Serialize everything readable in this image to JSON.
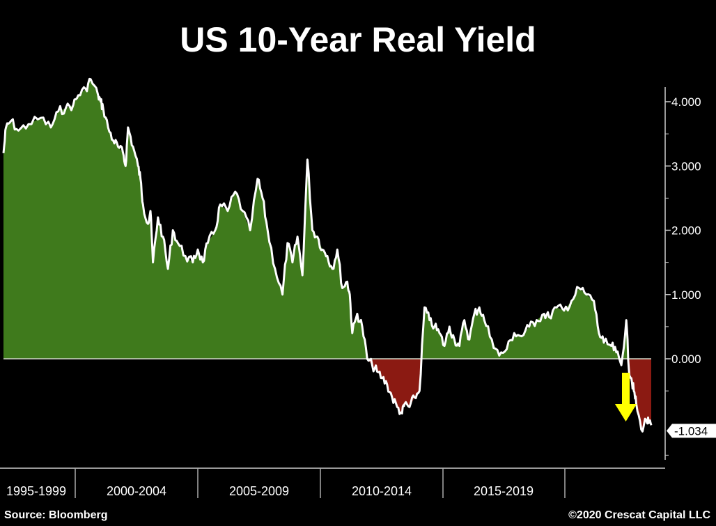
{
  "title": "US 10-Year Real Yield",
  "source": "Source: Bloomberg",
  "copyright": "©2020 Crescat Capital LLC",
  "colors": {
    "background": "#000000",
    "positive_fill": "#3f7a1c",
    "negative_fill": "#8b1a12",
    "line": "#ffffff",
    "arrow": "#ffff00"
  },
  "chart_data": {
    "type": "area",
    "title": "US 10-Year Real Yield",
    "xlabel": "",
    "ylabel": "",
    "ylim": [
      -1.5,
      4.3
    ],
    "xlim": [
      1995.0,
      2021.0
    ],
    "yticks": [
      4.0,
      3.0,
      2.0,
      1.0,
      0.0
    ],
    "ytick_labels": [
      "4.000",
      "3.000",
      "2.000",
      "1.000",
      "0.000"
    ],
    "xtick_labels": [
      "1995-1999",
      "2000-2004",
      "2005-2009",
      "2010-2014",
      "2015-2019"
    ],
    "last_value_label": "-1.034",
    "grid": false,
    "x": [
      1995.0,
      1995.1,
      1995.3,
      1995.6,
      1996.0,
      1996.5,
      1996.9,
      1997.2,
      1997.5,
      1997.8,
      1998.0,
      1998.3,
      1998.5,
      1998.8,
      1998.9,
      1999.0,
      1999.2,
      1999.4,
      1999.6,
      1999.8,
      1999.9,
      2000.0,
      2000.2,
      2000.4,
      2000.5,
      2000.6,
      2000.8,
      2000.9,
      2001.0,
      2001.2,
      2001.4,
      2001.6,
      2001.8,
      2002.0,
      2002.3,
      2002.6,
      2002.8,
      2003.0,
      2003.2,
      2003.5,
      2003.7,
      2004.0,
      2004.3,
      2004.6,
      2004.9,
      2005.2,
      2005.4,
      2005.6,
      2005.9,
      2006.2,
      2006.4,
      2006.6,
      2006.8,
      2007.0,
      2007.2,
      2007.4,
      2007.6,
      2007.8,
      2008.0,
      2008.2,
      2008.4,
      2008.6,
      2008.8,
      2008.9,
      2009.0,
      2009.2,
      2009.4,
      2009.6,
      2009.8,
      2010.0,
      2010.2,
      2010.4,
      2010.6,
      2010.8,
      2011.0,
      2011.1,
      2011.3,
      2011.5,
      2011.7,
      2011.9,
      2012.1,
      2012.3,
      2012.5,
      2012.7,
      2012.9,
      2013.1,
      2013.3,
      2013.5,
      2013.7,
      2013.9,
      2014.1,
      2014.3,
      2014.6,
      2014.9,
      2015.2,
      2015.5,
      2015.8,
      2016.1,
      2016.4,
      2016.7,
      2016.9,
      2017.2,
      2017.5,
      2017.8,
      2018.1,
      2018.4,
      2018.7,
      2018.9,
      2019.1,
      2019.4,
      2019.6,
      2019.8,
      2020.0,
      2020.1,
      2020.2,
      2020.3,
      2020.4,
      2020.6,
      2020.8,
      2020.9,
      2021.0
    ],
    "values": [
      3.2,
      3.6,
      3.7,
      3.55,
      3.65,
      3.75,
      3.6,
      3.85,
      3.9,
      3.95,
      4.1,
      4.2,
      4.35,
      4.1,
      4.0,
      3.9,
      3.6,
      3.4,
      3.3,
      3.2,
      3.0,
      3.6,
      3.3,
      3.0,
      2.8,
      2.4,
      2.1,
      2.3,
      1.5,
      2.2,
      1.9,
      1.4,
      2.0,
      1.8,
      1.6,
      1.5,
      1.7,
      1.5,
      1.8,
      2.0,
      2.4,
      2.3,
      2.6,
      2.3,
      2.0,
      2.8,
      2.5,
      2.0,
      1.4,
      1.0,
      1.8,
      1.5,
      1.9,
      1.3,
      3.1,
      2.0,
      1.9,
      1.7,
      1.6,
      1.4,
      1.7,
      1.1,
      1.2,
      1.0,
      0.4,
      0.7,
      0.5,
      0.0,
      -0.1,
      -0.2,
      -0.3,
      -0.4,
      -0.6,
      -0.75,
      -0.85,
      -0.7,
      -0.75,
      -0.6,
      -0.5,
      0.8,
      0.6,
      0.5,
      0.4,
      0.2,
      0.5,
      0.3,
      0.2,
      0.6,
      0.3,
      0.7,
      0.8,
      0.6,
      0.3,
      0.05,
      0.15,
      0.4,
      0.35,
      0.5,
      0.6,
      0.7,
      0.65,
      0.8,
      0.75,
      0.9,
      1.1,
      1.0,
      0.9,
      0.4,
      0.25,
      0.2,
      0.1,
      -0.1,
      0.6,
      -0.15,
      -0.3,
      -0.5,
      -0.7,
      -1.1,
      -0.95,
      -1.0,
      -1.034
    ]
  }
}
